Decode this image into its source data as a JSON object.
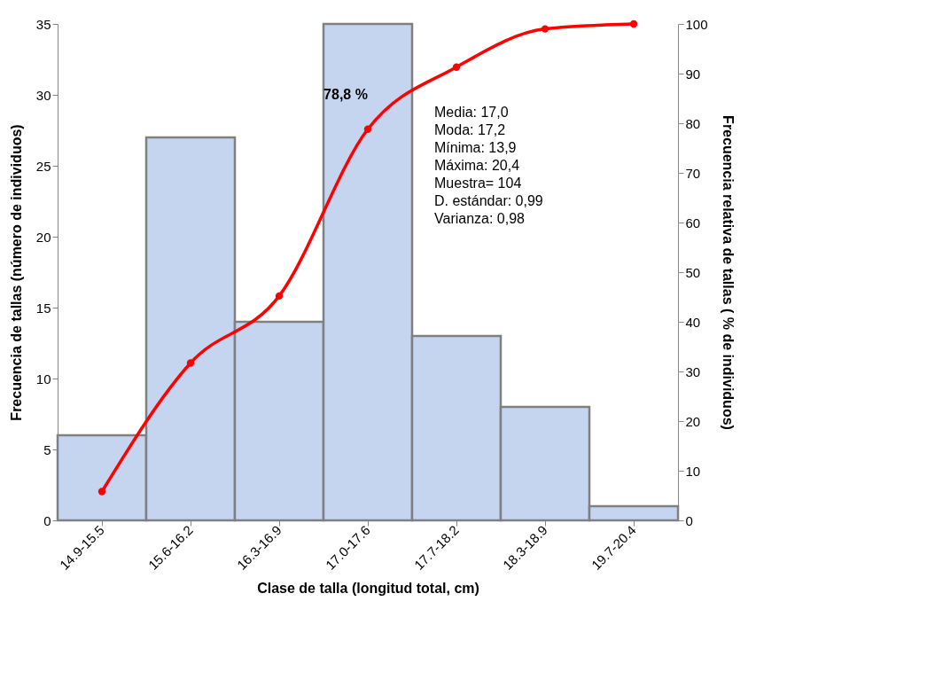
{
  "chart_data": {
    "type": "bar",
    "xlabel": "Clase de talla (longitud total, cm)",
    "ylabel": "Frecuencia de tallas (número de individuos)",
    "y2label": "Frecuencia relativa de tallas  ( % de individuos)",
    "categories": [
      "14.9-15.5",
      "15.6-16.2",
      "16.3-16.9",
      "17.0-17.6",
      "17.7-18.2",
      "18.3-18.9",
      "19.7-20.4"
    ],
    "series": [
      {
        "color": "#c5d5f0",
        "values": [
          6,
          27,
          14,
          35,
          13,
          8,
          1
        ]
      },
      {
        "type": "line",
        "axis": "y2",
        "color": "#ff0000",
        "marker": "circle",
        "values": [
          5.8,
          31.7,
          45.2,
          78.8,
          91.3,
          99.0,
          100
        ]
      }
    ],
    "ylim": [
      0,
      35
    ],
    "yticks": [
      0,
      5,
      10,
      15,
      20,
      25,
      30,
      35
    ],
    "y2lim": [
      0,
      100
    ],
    "y2ticks": [
      0,
      10,
      20,
      30,
      40,
      50,
      60,
      70,
      80,
      90,
      100
    ],
    "annotations": [
      "78,8 %",
      "Media: 17,0",
      "Moda: 17,2",
      "Mínima: 13,9",
      "Máxima: 20,4",
      "Muestra=  104",
      "D. estándar: 0,99",
      "Varianza:  0,98"
    ]
  }
}
